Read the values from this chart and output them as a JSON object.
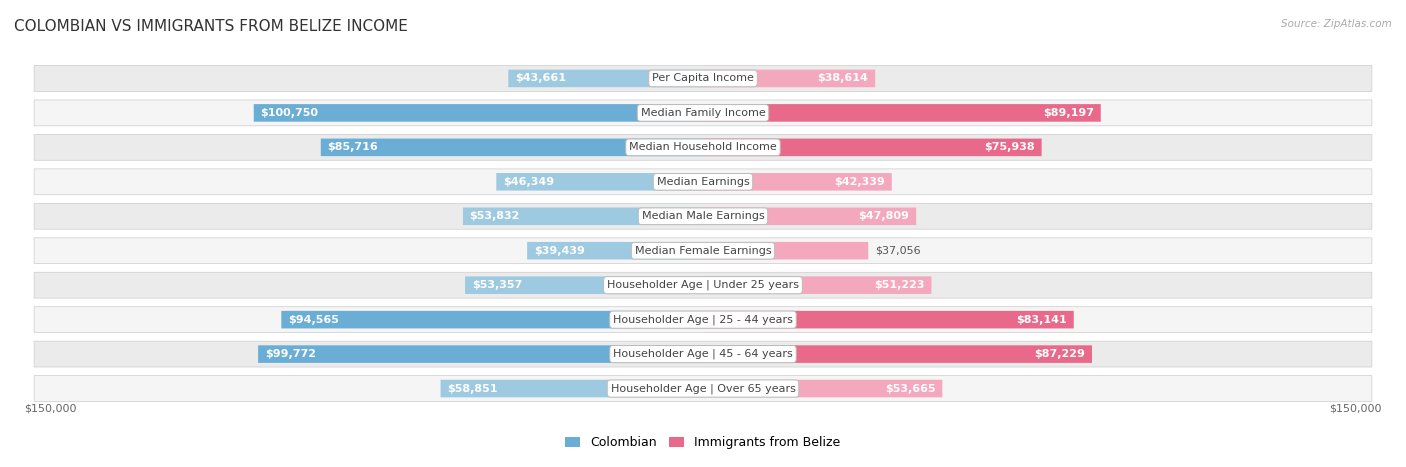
{
  "title": "COLOMBIAN VS IMMIGRANTS FROM BELIZE INCOME",
  "source": "Source: ZipAtlas.com",
  "categories": [
    "Per Capita Income",
    "Median Family Income",
    "Median Household Income",
    "Median Earnings",
    "Median Male Earnings",
    "Median Female Earnings",
    "Householder Age | Under 25 years",
    "Householder Age | 25 - 44 years",
    "Householder Age | 45 - 64 years",
    "Householder Age | Over 65 years"
  ],
  "colombian_values": [
    43661,
    100750,
    85716,
    46349,
    53832,
    39439,
    53357,
    94565,
    99772,
    58851
  ],
  "belize_values": [
    38614,
    89197,
    75938,
    42339,
    47809,
    37056,
    51223,
    83141,
    87229,
    53665
  ],
  "colombian_color_strong": "#6aaed6",
  "colombian_color_light": "#9ecae1",
  "belize_color_strong": "#e8698a",
  "belize_color_light": "#f4a8be",
  "row_bg_even": "#ebebeb",
  "row_bg_odd": "#f5f5f5",
  "max_value": 150000,
  "bg_color": "#ffffff",
  "title_fontsize": 11,
  "cat_fontsize": 8,
  "value_fontsize": 8,
  "legend_fontsize": 9,
  "axis_label_fontsize": 8,
  "col_inside_threshold": 55000,
  "bel_inside_threshold": 55000,
  "bottom_label_left": "$150,000",
  "bottom_label_right": "$150,000"
}
